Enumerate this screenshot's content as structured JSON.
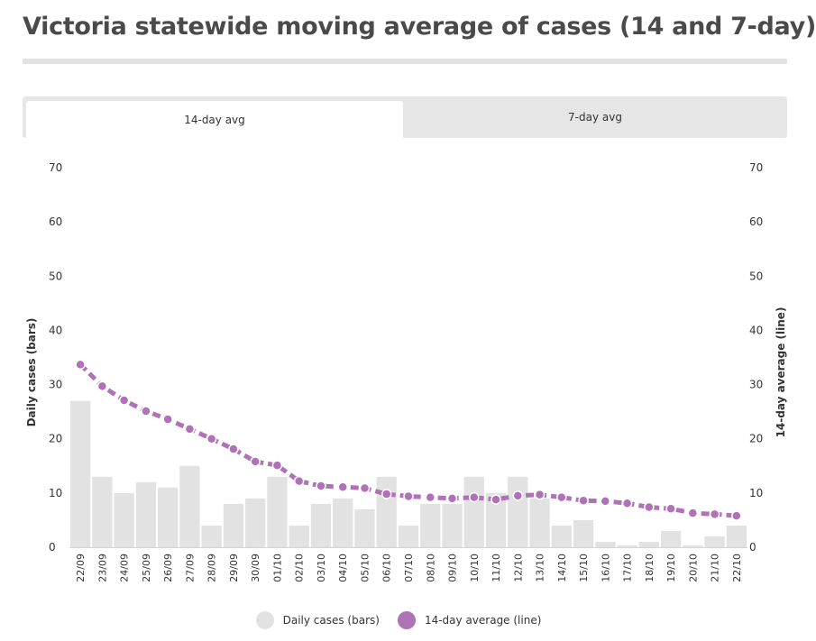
{
  "title": "Victoria statewide moving average of cases (14 and 7-day)",
  "tabs": [
    {
      "label": "14-day avg",
      "active": true
    },
    {
      "label": "7-day avg",
      "active": false
    }
  ],
  "colors": {
    "bars": "#e2e2e2",
    "line": "#b072b6",
    "grid": "#e6e6e6"
  },
  "legend": [
    {
      "label": "Daily cases (bars)",
      "color": "#e2e2e2"
    },
    {
      "label": "14-day average (line)",
      "color": "#b072b6"
    }
  ],
  "chart_data": {
    "type": "bar+line",
    "categories": [
      "22/09",
      "23/09",
      "24/09",
      "25/09",
      "26/09",
      "27/09",
      "28/09",
      "29/09",
      "30/09",
      "01/10",
      "02/10",
      "03/10",
      "04/10",
      "05/10",
      "06/10",
      "07/10",
      "08/10",
      "09/10",
      "10/10",
      "11/10",
      "12/10",
      "13/10",
      "14/10",
      "15/10",
      "16/10",
      "17/10",
      "18/10",
      "19/10",
      "20/10",
      "21/10",
      "22/10"
    ],
    "series": [
      {
        "name": "Daily cases (bars)",
        "type": "bar",
        "axis": "left",
        "values": [
          27,
          13,
          10,
          12,
          11,
          15,
          4,
          8,
          9,
          13,
          4,
          8,
          9,
          7,
          13,
          4,
          8,
          8,
          13,
          10,
          13,
          9,
          4,
          5,
          1,
          0,
          1,
          3,
          0,
          2,
          4
        ]
      },
      {
        "name": "14-day average (line)",
        "type": "line",
        "axis": "right",
        "values": [
          33.7,
          29.7,
          27.1,
          25.1,
          23.6,
          21.8,
          20.0,
          18.1,
          15.8,
          15.1,
          12.2,
          11.3,
          11.1,
          10.9,
          9.8,
          9.4,
          9.2,
          9.0,
          9.2,
          8.8,
          9.5,
          9.7,
          9.2,
          8.6,
          8.5,
          8.1,
          7.4,
          7.1,
          6.3,
          6.1,
          5.8
        ]
      }
    ],
    "y_left": {
      "label": "Daily cases (bars)",
      "ylim": [
        0,
        70
      ],
      "ticks": [
        0,
        10,
        20,
        30,
        40,
        50,
        60,
        70
      ]
    },
    "y_right": {
      "label": "14-day average (line)",
      "ylim": [
        0,
        70
      ],
      "ticks": [
        0,
        10,
        20,
        30,
        40,
        50,
        60,
        70
      ]
    },
    "grid": false,
    "legend_position": "bottom"
  }
}
